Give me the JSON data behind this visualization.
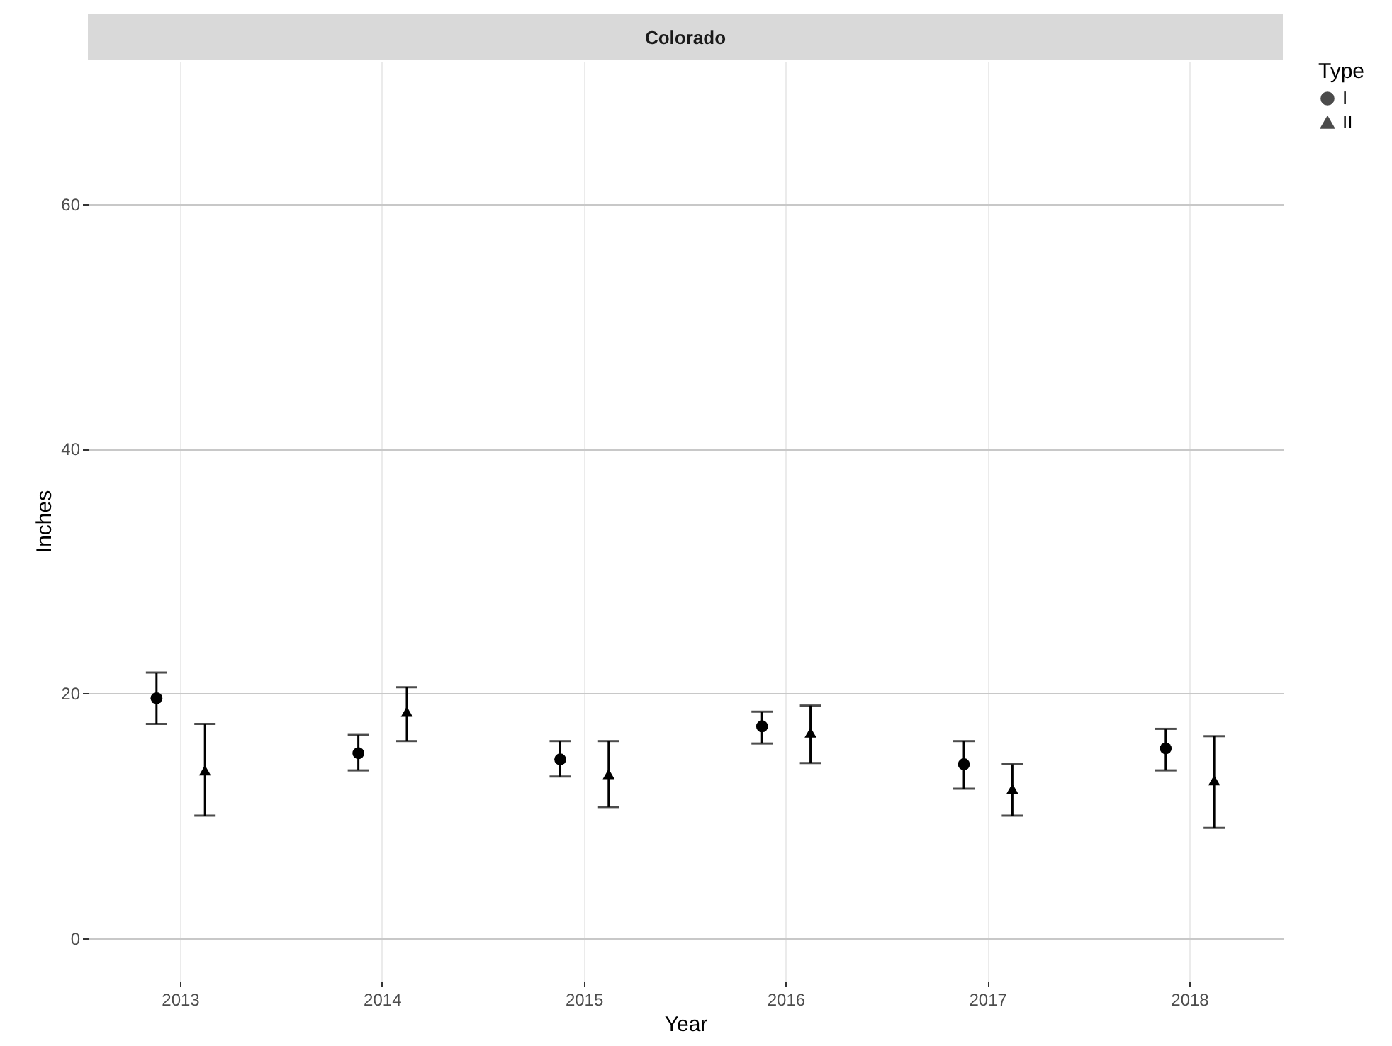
{
  "chart_data": {
    "type": "scatter",
    "title": "Colorado",
    "xlabel": "Year",
    "ylabel": "Inches",
    "legend_title": "Type",
    "categories": [
      "2013",
      "2014",
      "2015",
      "2016",
      "2017",
      "2018"
    ],
    "series": [
      {
        "name": "I",
        "color": "#000000",
        "marker": "circle",
        "values": [
          19.6,
          15.1,
          14.6,
          17.3,
          14.2,
          15.5
        ],
        "errors": [
          [
            17.5,
            21.7
          ],
          [
            13.7,
            16.6
          ],
          [
            13.2,
            16.1
          ],
          [
            15.9,
            18.5
          ],
          [
            12.2,
            16.1
          ],
          [
            13.7,
            17.1
          ]
        ]
      },
      {
        "name": "II",
        "color": "#000000",
        "marker": "triangle",
        "values": [
          13.7,
          18.5,
          13.4,
          16.8,
          12.2,
          12.9
        ],
        "errors": [
          [
            10.0,
            17.5
          ],
          [
            16.1,
            20.5
          ],
          [
            10.7,
            16.1
          ],
          [
            14.3,
            19.0
          ],
          [
            10.0,
            14.2
          ],
          [
            9.0,
            16.5
          ]
        ]
      }
    ],
    "ylim": [
      -3.5,
      71.7
    ],
    "yticks": [
      0,
      20,
      40,
      60
    ],
    "grid": true,
    "legend": "right"
  }
}
